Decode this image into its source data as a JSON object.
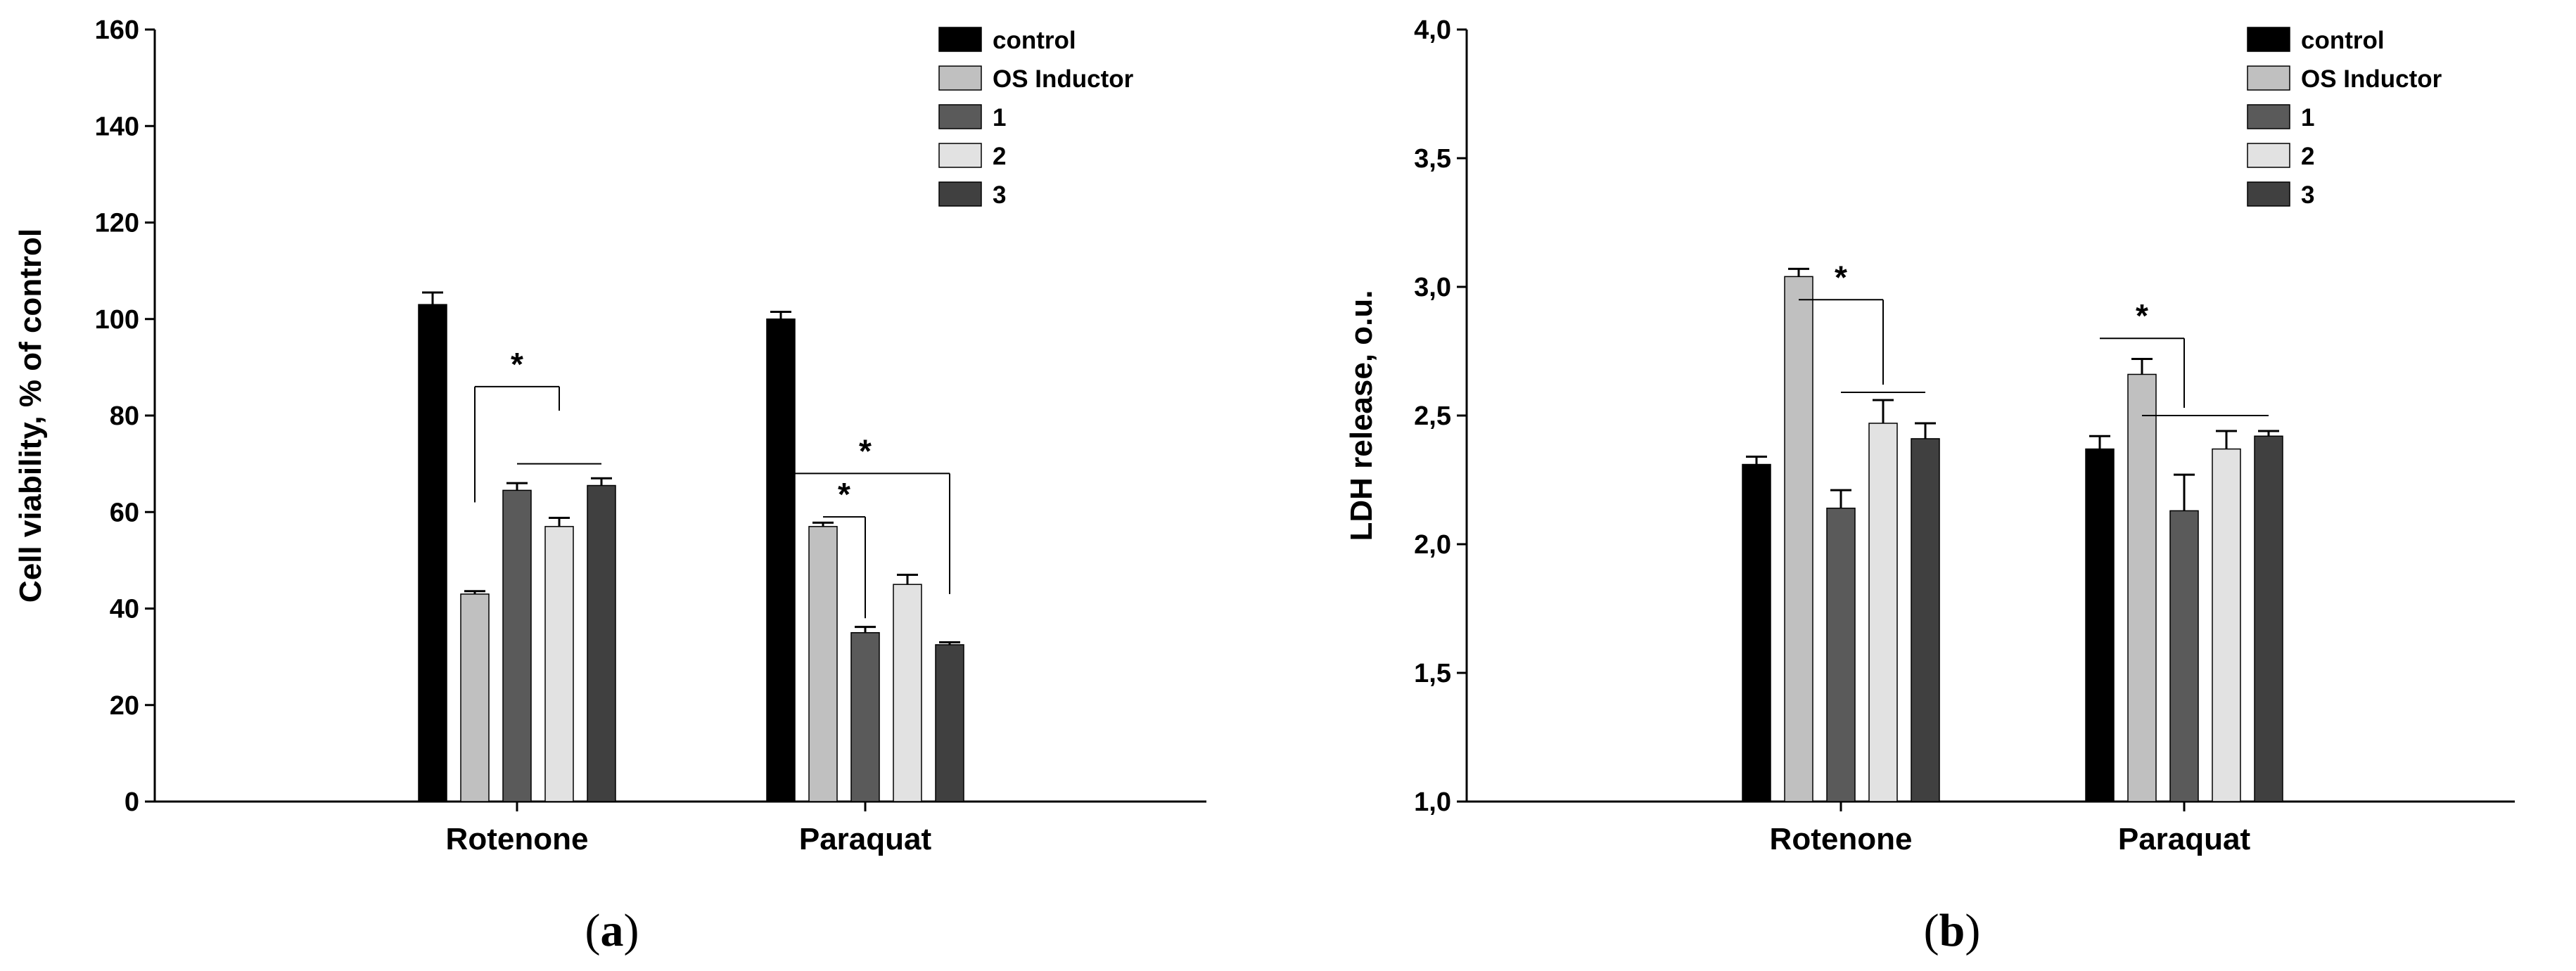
{
  "chart_data": [
    {
      "panel_label": {
        "open": "(",
        "letter": "a",
        "close": ")"
      },
      "type": "bar",
      "ylabel": "Cell viability, % of control",
      "ylim": [
        0,
        160
      ],
      "yticks": [
        0,
        20,
        40,
        60,
        80,
        100,
        120,
        140,
        160
      ],
      "categories": [
        "Rotenone",
        "Paraquat"
      ],
      "legend_position": "top-right",
      "series": [
        {
          "name": "control",
          "color": "#000000",
          "values": [
            103,
            100
          ],
          "errors": [
            2.5,
            1.5
          ]
        },
        {
          "name": "OS Inductor",
          "color": "#c0c0c0",
          "values": [
            43,
            57
          ],
          "errors": [
            0.6,
            0.8
          ]
        },
        {
          "name": "1",
          "color": "#5a5a5a",
          "values": [
            64.5,
            35
          ],
          "errors": [
            1.5,
            1.2
          ]
        },
        {
          "name": "2",
          "color": "#e2e2e2",
          "values": [
            57,
            45
          ],
          "errors": [
            1.8,
            2.0
          ]
        },
        {
          "name": "3",
          "color": "#404040",
          "values": [
            65.5,
            32.5
          ],
          "errors": [
            1.5,
            0.5
          ]
        }
      ],
      "annotations": [
        {
          "label": "*",
          "category": 0,
          "type": "bracket",
          "from_bar": 1,
          "to_bar": 3,
          "level": 86,
          "drop_from": 62,
          "drop_to": 81
        },
        {
          "label": "",
          "category": 0,
          "type": "line",
          "from_bar": 2,
          "to_bar": 4,
          "level": 70
        },
        {
          "label": "*",
          "category": 1,
          "type": "bracket",
          "from_bar": 1,
          "to_bar": 2,
          "level": 59,
          "drop_from": 59,
          "drop_to": 38
        },
        {
          "label": "*",
          "category": 1,
          "type": "bracket",
          "from_bar": 0,
          "to_bar": 4,
          "level": 68,
          "drop_from": 68,
          "drop_to": 43
        }
      ]
    },
    {
      "panel_label": {
        "open": "(",
        "letter": "b",
        "close": ")"
      },
      "type": "bar",
      "ylabel": "LDH release, o.u.",
      "ylim": [
        1.0,
        4.0
      ],
      "yticks": [
        "1,0",
        "1,5",
        "2,0",
        "2,5",
        "3,0",
        "3,5",
        "4,0"
      ],
      "categories": [
        "Rotenone",
        "Paraquat"
      ],
      "legend_position": "top-right",
      "series": [
        {
          "name": "control",
          "color": "#000000",
          "values": [
            2.31,
            2.37
          ],
          "errors": [
            0.03,
            0.05
          ]
        },
        {
          "name": "OS Inductor",
          "color": "#c0c0c0",
          "values": [
            3.04,
            2.66
          ],
          "errors": [
            0.03,
            0.06
          ]
        },
        {
          "name": "1",
          "color": "#5a5a5a",
          "values": [
            2.14,
            2.13
          ],
          "errors": [
            0.07,
            0.14
          ]
        },
        {
          "name": "2",
          "color": "#e2e2e2",
          "values": [
            2.47,
            2.37
          ],
          "errors": [
            0.09,
            0.07
          ]
        },
        {
          "name": "3",
          "color": "#404040",
          "values": [
            2.41,
            2.42
          ],
          "errors": [
            0.06,
            0.02
          ]
        }
      ],
      "annotations": [
        {
          "label": "*",
          "category": 0,
          "type": "bracket",
          "from_bar": 1,
          "to_bar": 3,
          "level": 2.95,
          "drop_from": 2.95,
          "drop_to": 2.62
        },
        {
          "label": "",
          "category": 0,
          "type": "line",
          "from_bar": 2,
          "to_bar": 4,
          "level": 2.59
        },
        {
          "label": "*",
          "category": 1,
          "type": "bracket",
          "from_bar": 0,
          "to_bar": 2,
          "level": 2.8,
          "drop_from": 2.8,
          "drop_to": 2.53
        },
        {
          "label": "",
          "category": 1,
          "type": "line",
          "from_bar": 1,
          "to_bar": 4,
          "level": 2.5
        }
      ]
    }
  ]
}
